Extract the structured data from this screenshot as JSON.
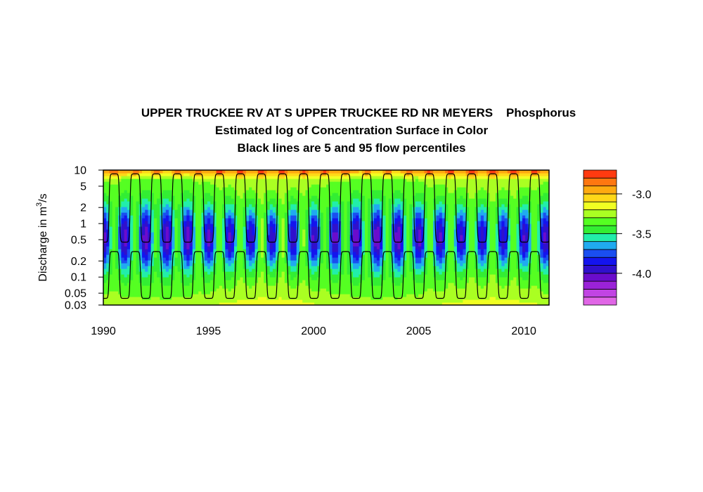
{
  "title": {
    "line1": "UPPER TRUCKEE RV AT S UPPER TRUCKEE RD NR MEYERS    Phosphorus",
    "line2": "Estimated log of Concentration Surface in Color",
    "line3": "Black lines are 5 and 95 flow percentiles"
  },
  "chart_data": {
    "type": "heatmap",
    "title": "UPPER TRUCKEE RV AT S UPPER TRUCKEE RD NR MEYERS    Phosphorus",
    "subtitle": [
      "Estimated log of Concentration Surface in Color",
      "Black lines are 5 and 95 flow percentiles"
    ],
    "xlabel": "",
    "ylabel": "Discharge in m³/s",
    "ylabel_parts": {
      "main": "Discharge in m",
      "sup": "3",
      "tail": "/s"
    },
    "xlim": [
      1990,
      2011.2
    ],
    "ylim": [
      0.03,
      10
    ],
    "y_scale": "log",
    "x_ticks": [
      1990,
      1995,
      2000,
      2005,
      2010
    ],
    "x_tick_labels": [
      "1990",
      "1995",
      "2000",
      "2005",
      "2010"
    ],
    "y_ticks": [
      0.03,
      0.05,
      0.1,
      0.2,
      0.5,
      1,
      2,
      5,
      10
    ],
    "y_tick_labels": [
      "0.03",
      "0.05",
      "0.1",
      "0.2",
      "0.5",
      "1",
      "2",
      "5",
      "10"
    ],
    "colorbar": {
      "levels": [
        -4.4,
        -4.3,
        -4.2,
        -4.1,
        -4.0,
        -3.9,
        -3.8,
        -3.7,
        -3.6,
        -3.5,
        -3.4,
        -3.3,
        -3.2,
        -3.1,
        -3.0,
        -2.9,
        -2.8,
        -2.7
      ],
      "colors": [
        "#e066e6",
        "#c144e3",
        "#9a22d8",
        "#6a0ccc",
        "#3010cc",
        "#1414ee",
        "#1a4ef0",
        "#20aaf0",
        "#22eeaa",
        "#33ee33",
        "#55ff22",
        "#aaff22",
        "#f0ff22",
        "#ffd818",
        "#ffaa10",
        "#ff7710",
        "#ff3a10"
      ],
      "ticks": [
        -3.0,
        -3.5,
        -4.0
      ],
      "tick_labels": [
        "-3.0",
        "-3.5",
        "-4.0"
      ]
    },
    "percentile_lines": {
      "upper_95": {
        "name": "95 flow percentile",
        "peak": 8.5,
        "trough": 0.45
      },
      "lower_5": {
        "name": "5 flow percentile",
        "peak": 0.3,
        "trough": 0.04
      }
    }
  }
}
